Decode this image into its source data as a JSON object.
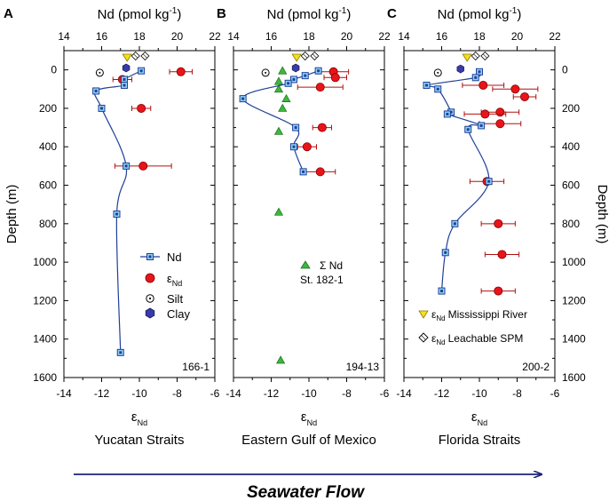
{
  "figure": {
    "flow_label": "Seawater Flow",
    "flow_color": "#1a237e",
    "nd_color": "#1f3f99",
    "marker_blue": "#8fd3f4",
    "marker_red": "#e8141a",
    "marker_green": "#3cb83c",
    "marker_yellow": "#f5e11a",
    "marker_clay": "#3a3aa8",
    "legend": {
      "nd": "Nd",
      "end": "ε",
      "end_sub": "Nd",
      "silt": "Silt",
      "clay": "Clay",
      "sum_nd": "Σ Nd",
      "sum_nd_station": "St. 182-1",
      "miss_prefix": "ε",
      "miss_sub": "Nd",
      "miss": "Mississippi River",
      "spm_prefix": "ε",
      "spm_sub": "Nd",
      "spm": "Leachable SPM"
    }
  },
  "chart_data": [
    {
      "panel_letter": "A",
      "type": "scatter",
      "top_axis_label": "Nd (pmol kg",
      "top_axis_sup": "-1",
      "top_axis_close": ")",
      "top_ticks": [
        "14",
        "16",
        "18",
        "20",
        "22"
      ],
      "top_range": [
        14,
        22
      ],
      "bottom_axis_label": "ε",
      "bottom_axis_sub": "Nd",
      "bottom_ticks": [
        "-14",
        "-12",
        "-10",
        "-8",
        "-6"
      ],
      "bottom_range": [
        -14,
        -6
      ],
      "depth_label": "Depth (m)",
      "depth_ticks": [
        "0",
        "200",
        "400",
        "600",
        "800",
        "1000",
        "1200",
        "1400",
        "1600"
      ],
      "depth_range": [
        -100,
        1600
      ],
      "site_label": "Yucatan Straits",
      "station": "166-1",
      "nd_profile": [
        {
          "depth": 5,
          "nd": 18.1
        },
        {
          "depth": 50,
          "nd": 17.2
        },
        {
          "depth": 80,
          "nd": 17.2
        },
        {
          "depth": 110,
          "nd": 15.7
        },
        {
          "depth": 200,
          "nd": 16.0
        },
        {
          "depth": 500,
          "nd": 17.3
        },
        {
          "depth": 750,
          "nd": 16.8
        },
        {
          "depth": 1470,
          "nd": 17.0
        }
      ],
      "end": [
        {
          "depth": 10,
          "value": -7.8,
          "err": 0.6
        },
        {
          "depth": 50,
          "value": -10.9,
          "err": 0.5
        },
        {
          "depth": 200,
          "value": -9.9,
          "err": 0.5
        },
        {
          "depth": 500,
          "value": -9.8,
          "err": 1.5
        }
      ],
      "silt": [
        {
          "depth": 15,
          "nd": 15.9
        }
      ],
      "clay": [
        {
          "depth": -10,
          "nd": 17.3
        }
      ],
      "mississippi": [
        {
          "nd": 17.35
        }
      ],
      "spm": [
        {
          "nd": 17.8
        },
        {
          "nd": 18.3
        }
      ]
    },
    {
      "panel_letter": "B",
      "type": "scatter",
      "top_axis_label": "Nd (pmol kg",
      "top_axis_sup": "-1",
      "top_axis_close": ")",
      "top_ticks": [
        "14",
        "16",
        "18",
        "20",
        "22"
      ],
      "top_range": [
        14,
        22
      ],
      "bottom_axis_label": "ε",
      "bottom_axis_sub": "Nd",
      "bottom_ticks": [
        "-14",
        "-12",
        "-10",
        "-8",
        "-6"
      ],
      "bottom_range": [
        -14,
        -6
      ],
      "depth_label": "Depth (m)",
      "depth_ticks": [
        "0",
        "200",
        "400",
        "600",
        "800",
        "1000",
        "1200",
        "1400",
        "1600"
      ],
      "depth_range": [
        -100,
        1600
      ],
      "site_label": "Eastern Gulf of Mexico",
      "station": "194-13",
      "nd_profile": [
        {
          "depth": 5,
          "nd": 18.5
        },
        {
          "depth": 30,
          "nd": 17.8
        },
        {
          "depth": 50,
          "nd": 17.2
        },
        {
          "depth": 70,
          "nd": 16.9
        },
        {
          "depth": 150,
          "nd": 14.5
        },
        {
          "depth": 300,
          "nd": 17.3
        },
        {
          "depth": 400,
          "nd": 17.2
        },
        {
          "depth": 530,
          "nd": 17.7
        }
      ],
      "end": [
        {
          "depth": 10,
          "value": -8.7,
          "err": 0.8
        },
        {
          "depth": 40,
          "value": -8.6,
          "err": 0.6
        },
        {
          "depth": 90,
          "value": -9.4,
          "err": 1.2
        },
        {
          "depth": 300,
          "value": -9.3,
          "err": 0.5
        },
        {
          "depth": 400,
          "value": -10.1,
          "err": 0.5
        },
        {
          "depth": 530,
          "value": -9.4,
          "err": 0.8
        }
      ],
      "sum_nd": [
        {
          "depth": 5,
          "nd": 16.6
        },
        {
          "depth": 60,
          "nd": 16.4
        },
        {
          "depth": 100,
          "nd": 16.4
        },
        {
          "depth": 150,
          "nd": 16.8
        },
        {
          "depth": 200,
          "nd": 16.6
        },
        {
          "depth": 320,
          "nd": 16.4
        },
        {
          "depth": 740,
          "nd": 16.4
        },
        {
          "depth": 1510,
          "nd": 16.5
        }
      ],
      "silt": [
        {
          "depth": 15,
          "nd": 15.7
        }
      ],
      "clay": [
        {
          "depth": -10,
          "nd": 17.3
        }
      ],
      "mississippi": [
        {
          "nd": 17.35
        }
      ],
      "spm": [
        {
          "nd": 17.8
        },
        {
          "nd": 18.3
        }
      ]
    },
    {
      "panel_letter": "C",
      "type": "scatter",
      "top_axis_label": "Nd (pmol kg",
      "top_axis_sup": "-1",
      "top_axis_close": ")",
      "top_ticks": [
        "14",
        "16",
        "18",
        "20",
        "22"
      ],
      "top_range": [
        14,
        22
      ],
      "bottom_axis_label": "ε",
      "bottom_axis_sub": "Nd",
      "bottom_ticks": [
        "-14",
        "-12",
        "-10",
        "-8",
        "-6"
      ],
      "bottom_range": [
        -14,
        -6
      ],
      "depth_label": "Depth (m)",
      "depth_ticks": [
        "0",
        "200",
        "400",
        "600",
        "800",
        "1000",
        "1200",
        "1400",
        "1600"
      ],
      "depth_range": [
        -100,
        1600
      ],
      "site_label": "Florida Straits",
      "station": "200-2",
      "nd_profile": [
        {
          "depth": 10,
          "nd": 18.0
        },
        {
          "depth": 40,
          "nd": 17.8
        },
        {
          "depth": 80,
          "nd": 15.2
        },
        {
          "depth": 100,
          "nd": 15.8
        },
        {
          "depth": 220,
          "nd": 16.5
        },
        {
          "depth": 230,
          "nd": 16.3
        },
        {
          "depth": 290,
          "nd": 18.1
        },
        {
          "depth": 310,
          "nd": 17.4
        },
        {
          "depth": 580,
          "nd": 18.5
        },
        {
          "depth": 800,
          "nd": 16.7
        },
        {
          "depth": 950,
          "nd": 16.2
        },
        {
          "depth": 1150,
          "nd": 16.0
        }
      ],
      "end": [
        {
          "depth": 80,
          "value": -9.8,
          "err": 1.1
        },
        {
          "depth": 100,
          "value": -8.1,
          "err": 1.2
        },
        {
          "depth": 140,
          "value": -7.6,
          "err": 0.6
        },
        {
          "depth": 220,
          "value": -8.9,
          "err": 1.0
        },
        {
          "depth": 230,
          "value": -9.7,
          "err": 1.1
        },
        {
          "depth": 280,
          "value": -8.9,
          "err": 1.1
        },
        {
          "depth": 580,
          "value": -9.6,
          "err": 0.9
        },
        {
          "depth": 800,
          "value": -9.0,
          "err": 0.9
        },
        {
          "depth": 960,
          "value": -8.8,
          "err": 0.9
        },
        {
          "depth": 1150,
          "value": -9.0,
          "err": 0.9
        }
      ],
      "silt": [
        {
          "depth": 15,
          "nd": 15.8
        }
      ],
      "clay": [
        {
          "depth": -5,
          "nd": 17.0
        }
      ],
      "mississippi": [
        {
          "nd": 17.35
        }
      ],
      "spm": [
        {
          "nd": 17.8
        },
        {
          "nd": 18.3
        }
      ]
    }
  ]
}
